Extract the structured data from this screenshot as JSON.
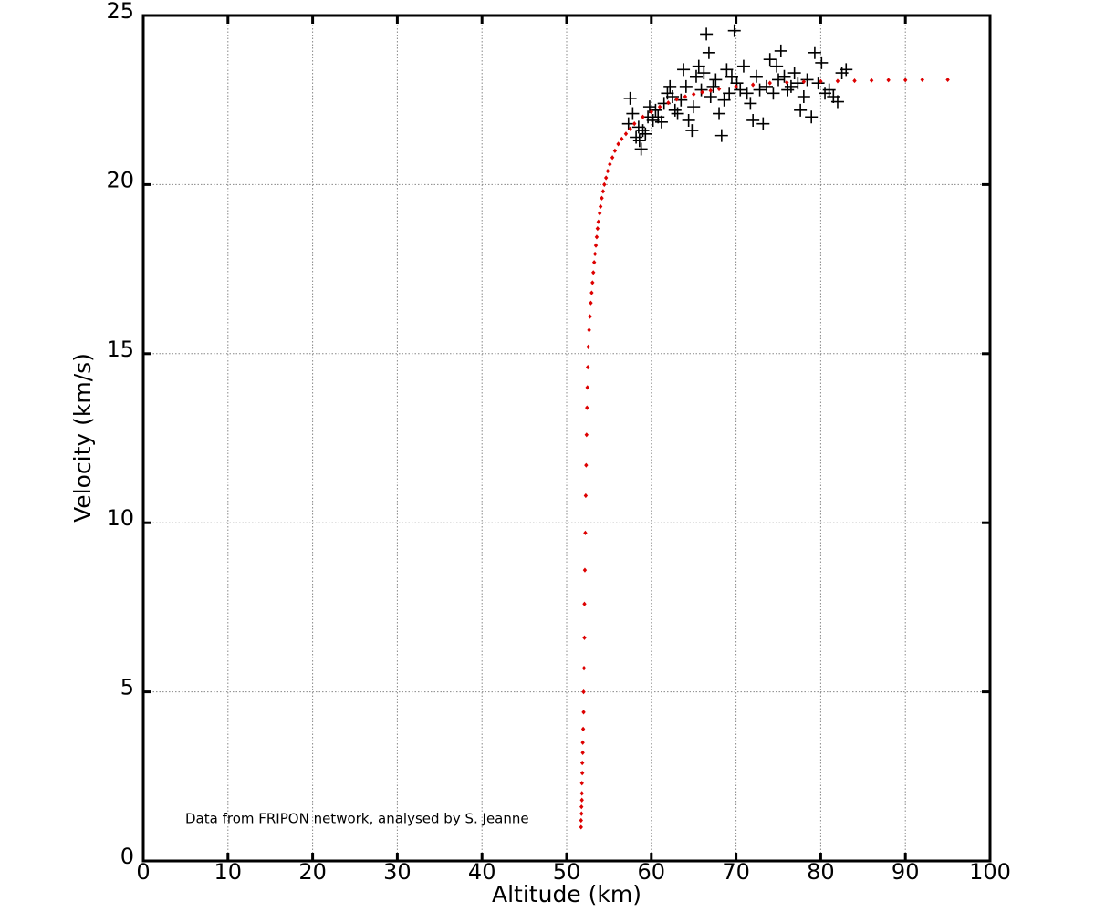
{
  "chart_data": {
    "type": "scatter",
    "x_label": "Altitude (km)",
    "y_label": "Velocity (km/s)",
    "annotation": "Data from FRIPON network, analysed by S. Jeanne",
    "xlim": [
      0,
      100
    ],
    "xticks": [
      0,
      10,
      20,
      30,
      40,
      50,
      60,
      70,
      80,
      90,
      100
    ],
    "ylim": [
      0,
      25
    ],
    "yticks": [
      0,
      5,
      10,
      15,
      20,
      25
    ],
    "grid": true,
    "series": [
      {
        "color": "#000000",
        "marker": "plus",
        "x": [
          57.5,
          57.3,
          57.8,
          58.2,
          58.5,
          58.8,
          58.6,
          59.0,
          59.3,
          59.6,
          59.8,
          60.2,
          60.5,
          60.8,
          61.2,
          61.5,
          61.9,
          62.2,
          62.5,
          62.8,
          63.1,
          63.5,
          63.8,
          64.1,
          64.4,
          64.8,
          65.0,
          65.3,
          65.6,
          65.9,
          66.2,
          66.5,
          66.8,
          67.0,
          67.3,
          67.6,
          68.0,
          68.3,
          68.6,
          68.9,
          69.2,
          69.5,
          69.8,
          70.1,
          70.5,
          70.9,
          71.3,
          71.7,
          72.0,
          72.4,
          72.8,
          73.2,
          73.6,
          74.0,
          74.4,
          74.8,
          75.0,
          75.3,
          75.7,
          76.1,
          76.5,
          76.9,
          77.3,
          77.6,
          78.0,
          78.4,
          78.9,
          79.3,
          79.7,
          80.1,
          80.5,
          81.0,
          81.5,
          82.0,
          82.5,
          83.0
        ],
        "values": [
          22.55,
          21.8,
          22.1,
          21.4,
          21.7,
          21.05,
          21.3,
          21.6,
          21.5,
          22.0,
          22.3,
          21.9,
          22.2,
          22.0,
          21.85,
          22.4,
          22.7,
          22.9,
          22.6,
          22.2,
          22.1,
          22.5,
          23.4,
          22.9,
          21.9,
          21.6,
          22.3,
          23.2,
          23.5,
          22.8,
          23.3,
          24.45,
          23.9,
          22.6,
          22.9,
          23.1,
          22.1,
          21.45,
          22.5,
          23.4,
          22.7,
          23.2,
          24.55,
          23.0,
          22.8,
          23.5,
          22.7,
          22.4,
          21.9,
          23.2,
          22.8,
          21.8,
          22.9,
          23.7,
          22.7,
          23.5,
          23.1,
          23.95,
          23.2,
          22.8,
          22.9,
          23.3,
          23.0,
          22.2,
          22.6,
          23.1,
          22.0,
          23.9,
          23.0,
          23.6,
          22.7,
          22.8,
          22.6,
          22.45,
          23.3,
          23.4
        ]
      },
      {
        "color": "#dd0000",
        "marker": "diamond",
        "x": [
          51.7,
          51.7,
          51.75,
          51.75,
          51.8,
          51.8,
          51.8,
          51.85,
          51.85,
          51.9,
          51.9,
          51.95,
          52.0,
          52.0,
          52.05,
          52.1,
          52.1,
          52.15,
          52.2,
          52.25,
          52.3,
          52.35,
          52.4,
          52.45,
          52.5,
          52.55,
          52.65,
          52.75,
          52.85,
          52.95,
          53.05,
          53.15,
          53.25,
          53.35,
          53.45,
          53.55,
          53.65,
          53.75,
          53.9,
          54.0,
          54.15,
          54.3,
          54.45,
          54.65,
          54.85,
          55.1,
          55.4,
          55.7,
          56.1,
          56.5,
          57,
          57.5,
          58,
          59,
          60,
          61,
          62,
          63,
          64,
          65,
          66,
          67,
          68,
          70,
          72,
          74,
          76,
          78,
          80,
          82,
          84,
          86,
          88,
          90,
          92,
          95
        ],
        "values": [
          1.0,
          1.2,
          1.4,
          1.6,
          1.8,
          2.0,
          2.3,
          2.6,
          2.9,
          3.2,
          3.5,
          3.9,
          4.4,
          5.0,
          5.7,
          6.6,
          7.6,
          8.6,
          9.7,
          10.8,
          11.7,
          12.6,
          13.4,
          14.0,
          14.6,
          15.2,
          15.7,
          16.1,
          16.5,
          16.8,
          17.1,
          17.4,
          17.7,
          17.95,
          18.2,
          18.45,
          18.7,
          18.9,
          19.15,
          19.35,
          19.6,
          19.8,
          20.0,
          20.2,
          20.4,
          20.6,
          20.8,
          21.0,
          21.2,
          21.35,
          21.5,
          21.65,
          21.8,
          22.0,
          22.15,
          22.3,
          22.42,
          22.52,
          22.6,
          22.67,
          22.73,
          22.78,
          22.83,
          22.9,
          22.95,
          23.0,
          23.02,
          23.04,
          23.05,
          23.06,
          23.07,
          23.08,
          23.09,
          23.09,
          23.1,
          23.1
        ]
      }
    ]
  }
}
